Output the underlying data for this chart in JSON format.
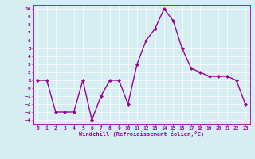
{
  "x": [
    0,
    1,
    2,
    3,
    4,
    5,
    6,
    7,
    8,
    9,
    10,
    11,
    12,
    13,
    14,
    15,
    16,
    17,
    18,
    19,
    20,
    21,
    22,
    23
  ],
  "y": [
    1,
    1,
    -3,
    -3,
    -3,
    1,
    -4,
    -1,
    1,
    1,
    -2,
    3,
    6,
    7.5,
    10,
    8.5,
    5,
    2.5,
    2,
    1.5,
    1.5,
    1.5,
    1,
    -2
  ],
  "line_color": "#990099",
  "marker": "D",
  "marker_size": 2,
  "linewidth": 1.0,
  "xlabel": "Windchill (Refroidissement éolien,°C)",
  "xlim": [
    -0.5,
    23.5
  ],
  "ylim": [
    -4.5,
    10.5
  ],
  "yticks": [
    -4,
    -3,
    -2,
    -1,
    0,
    1,
    2,
    3,
    4,
    5,
    6,
    7,
    8,
    9,
    10
  ],
  "xticks": [
    0,
    1,
    2,
    3,
    4,
    5,
    6,
    7,
    8,
    9,
    10,
    11,
    12,
    13,
    14,
    15,
    16,
    17,
    18,
    19,
    20,
    21,
    22,
    23
  ],
  "background_color": "#d6eef2",
  "grid_color": "#ffffff",
  "tick_color": "#990099",
  "label_color": "#990099"
}
